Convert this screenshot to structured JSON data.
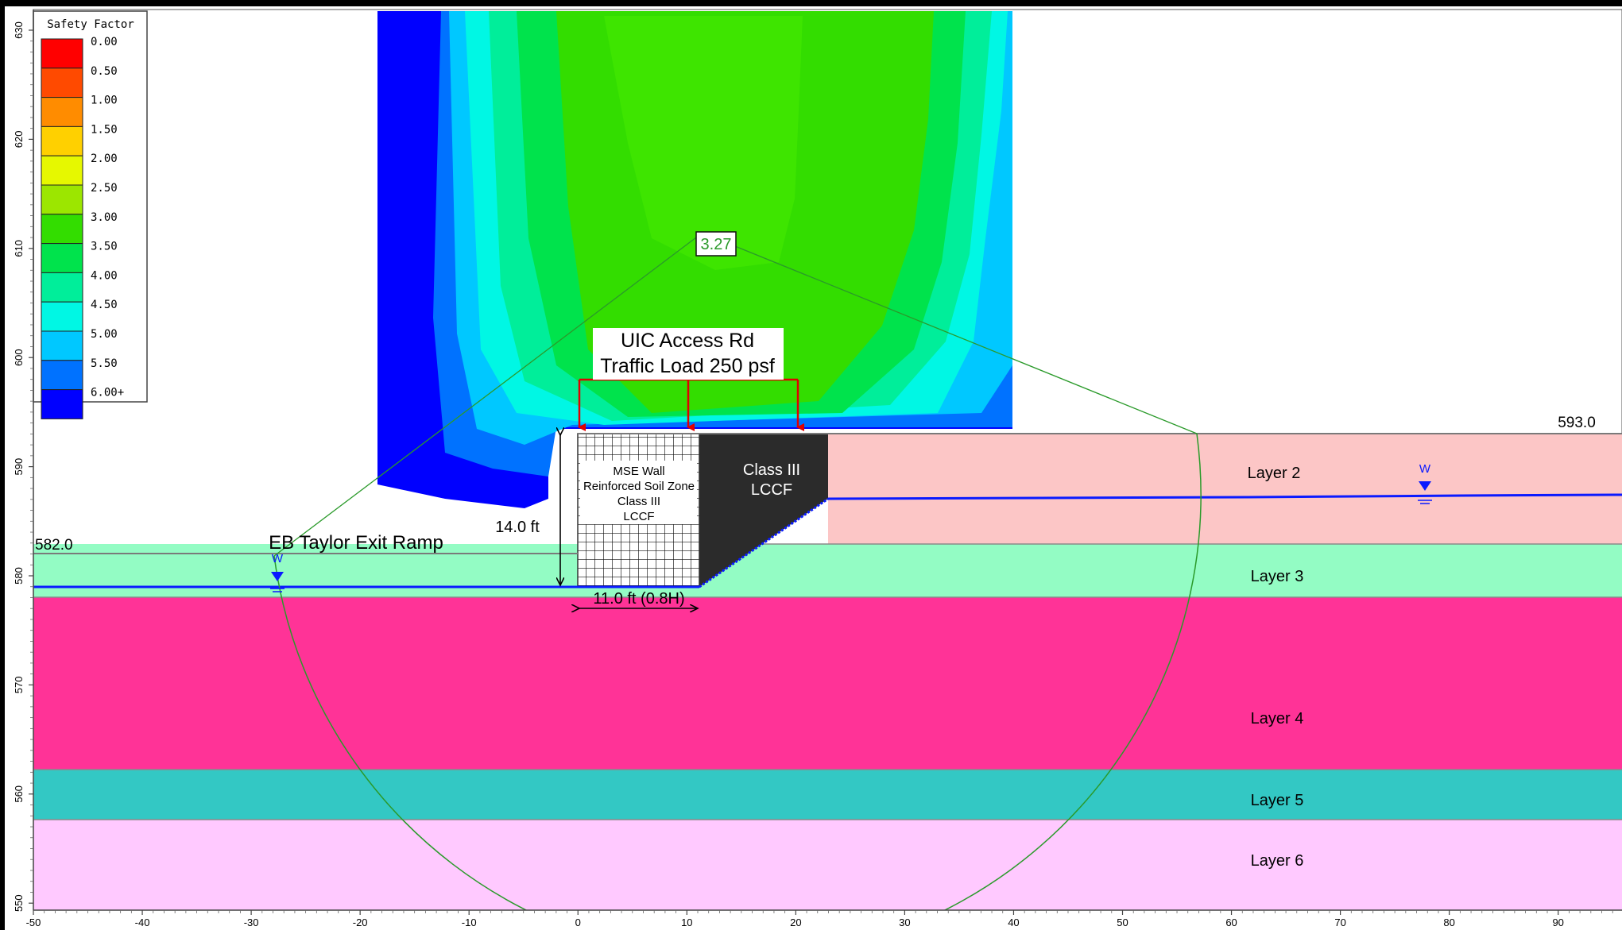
{
  "axes": {
    "x_ticks": [
      "-50",
      "-40",
      "-30",
      "-20",
      "-10",
      "0",
      "10",
      "20",
      "30",
      "40",
      "50",
      "60",
      "70",
      "80",
      "90"
    ],
    "y_ticks": [
      "630",
      "620",
      "610",
      "600",
      "590",
      "580",
      "570",
      "560",
      "550"
    ]
  },
  "legend": {
    "title": "Safety Factor",
    "items": [
      {
        "label": "0.00",
        "color": "#ff0000"
      },
      {
        "label": "0.50",
        "color": "#ff4a00"
      },
      {
        "label": "1.00",
        "color": "#ff8c00"
      },
      {
        "label": "1.50",
        "color": "#ffd000"
      },
      {
        "label": "2.00",
        "color": "#e6f800"
      },
      {
        "label": "2.50",
        "color": "#9ce600"
      },
      {
        "label": "3.00",
        "color": "#33dd00"
      },
      {
        "label": "3.50",
        "color": "#00e34c"
      },
      {
        "label": "4.00",
        "color": "#00ee9a"
      },
      {
        "label": "4.50",
        "color": "#00f7e4"
      },
      {
        "label": "5.00",
        "color": "#00c8ff"
      },
      {
        "label": "5.50",
        "color": "#0072ff"
      },
      {
        "label": "6.00+",
        "color": "#0000ff"
      }
    ]
  },
  "min_fs_label": "3.27",
  "load": {
    "line1": "UIC Access Rd",
    "line2": "Traffic Load 250 psf"
  },
  "elevations": {
    "left": "582.0",
    "right": "593.0"
  },
  "ramp_label": "EB Taylor Exit Ramp",
  "wall_height_label": "14.0 ft",
  "wall_width_label": "11.0 ft (0.8H)",
  "mse_wall_lines": [
    "MSE Wall",
    "Reinforced Soil Zone",
    "Class III",
    "LCCF"
  ],
  "lccf_lines": [
    "Class III",
    "LCCF"
  ],
  "water_marker": "W",
  "layers": [
    {
      "name": "Layer 2",
      "color": "#fcc6c6"
    },
    {
      "name": "Layer 3",
      "color": "#93fcc4"
    },
    {
      "name": "Layer 4",
      "color": "#ff3397"
    },
    {
      "name": "Layer 5",
      "color": "#33c8c4"
    },
    {
      "name": "Layer 6",
      "color": "#ffc9ff"
    }
  ],
  "colors": {
    "water_table": "#0a1aff",
    "slip_surface": "#2a9a2a",
    "load_arrows": "#e00000",
    "lccf_fill": "#2b2b2b"
  }
}
